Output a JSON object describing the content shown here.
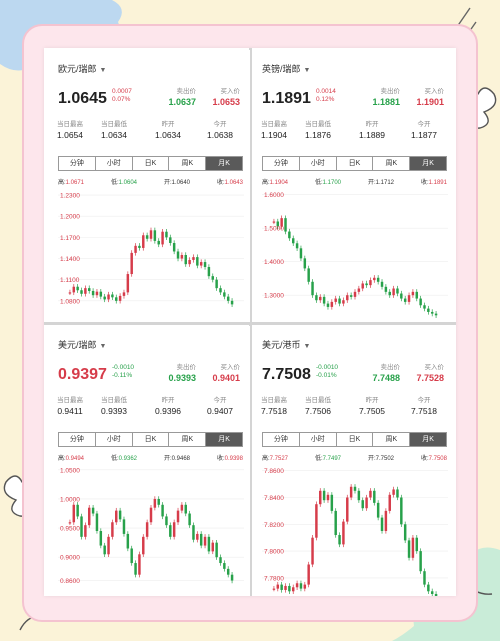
{
  "tabs": [
    "分钟",
    "小时",
    "日K",
    "周K",
    "月K"
  ],
  "labels": {
    "ask": "卖出价",
    "bid": "买入价",
    "high": "当日最高",
    "low": "当日最低",
    "prev_close": "昨开",
    "open": "今开",
    "ohlc_high": "高:",
    "ohlc_low": "低:",
    "ohlc_open": "开:",
    "ohlc_close": "收:"
  },
  "panels": [
    {
      "pair": "欧元/瑞郎",
      "price": "1.0645",
      "price_color": "#222222",
      "change": "0.0007",
      "change_pct": "0.07%",
      "change_color": "#d63c4a",
      "ask": "1.0637",
      "bid": "1.0653",
      "stats": {
        "high": "1.0654",
        "low": "1.0634",
        "prev_close": "1.0634",
        "open": "1.0638"
      },
      "ohlc": {
        "high": "1.0671",
        "low": "1.0604",
        "open": "1.0640",
        "close": "1.0643"
      },
      "chart_data": {
        "type": "candlestick",
        "ylim": [
          1.05,
          1.24
        ],
        "yticks": [
          1.23,
          1.2,
          1.17,
          1.14,
          1.11,
          1.08
        ],
        "ytick_labels": [
          "1.2300",
          "1.2000",
          "1.1700",
          "1.1400",
          "1.1100",
          "1.0800"
        ],
        "values": [
          1.092,
          1.1,
          1.095,
          1.09,
          1.098,
          1.094,
          1.088,
          1.093,
          1.086,
          1.082,
          1.089,
          1.085,
          1.08,
          1.087,
          1.092,
          1.118,
          1.148,
          1.158,
          1.155,
          1.173,
          1.168,
          1.18,
          1.165,
          1.16,
          1.178,
          1.17,
          1.162,
          1.15,
          1.14,
          1.145,
          1.132,
          1.138,
          1.142,
          1.13,
          1.135,
          1.128,
          1.115,
          1.11,
          1.098,
          1.092,
          1.086,
          1.08,
          1.075
        ]
      }
    },
    {
      "pair": "英镑/瑞郎",
      "price": "1.1891",
      "price_color": "#222222",
      "change": "0.0014",
      "change_pct": "0.12%",
      "change_color": "#d63c4a",
      "ask": "1.1881",
      "bid": "1.1901",
      "stats": {
        "high": "1.1904",
        "low": "1.1876",
        "prev_close": "1.1889",
        "open": "1.1877"
      },
      "ohlc": {
        "high": "1.1904",
        "low": "1.1700",
        "open": "1.1712",
        "close": "1.1891"
      },
      "chart_data": {
        "type": "candlestick",
        "ylim": [
          1.22,
          1.62
        ],
        "yticks": [
          1.6,
          1.5,
          1.4,
          1.3
        ],
        "ytick_labels": [
          "1.6000",
          "1.5000",
          "1.4000",
          "1.3000"
        ],
        "values": [
          1.52,
          1.505,
          1.53,
          1.49,
          1.47,
          1.455,
          1.44,
          1.41,
          1.38,
          1.34,
          1.3,
          1.285,
          1.295,
          1.275,
          1.265,
          1.28,
          1.29,
          1.275,
          1.285,
          1.3,
          1.295,
          1.31,
          1.32,
          1.335,
          1.33,
          1.345,
          1.352,
          1.34,
          1.325,
          1.31,
          1.3,
          1.32,
          1.305,
          1.29,
          1.28,
          1.3,
          1.31,
          1.29,
          1.27,
          1.26,
          1.25,
          1.245,
          1.24
        ]
      }
    },
    {
      "pair": "美元/瑞郎",
      "price": "0.9397",
      "price_color": "#d63c4a",
      "change": "-0.0010",
      "change_pct": "-0.11%",
      "change_color": "#27a14a",
      "ask": "0.9393",
      "bid": "0.9401",
      "stats": {
        "high": "0.9411",
        "low": "0.9393",
        "prev_close": "0.9396",
        "open": "0.9407"
      },
      "ohlc": {
        "high": "0.9494",
        "low": "0.9362",
        "open": "0.9468",
        "close": "0.9398"
      },
      "chart_data": {
        "type": "candlestick",
        "ylim": [
          0.83,
          1.06
        ],
        "yticks": [
          1.05,
          1.0,
          0.95,
          0.9,
          0.86
        ],
        "ytick_labels": [
          "1.0500",
          "1.0000",
          "0.9500",
          "0.9000",
          "0.8600"
        ],
        "values": [
          0.96,
          0.99,
          0.97,
          0.935,
          0.955,
          0.985,
          0.975,
          0.945,
          0.92,
          0.905,
          0.935,
          0.96,
          0.98,
          0.965,
          0.94,
          0.915,
          0.89,
          0.87,
          0.905,
          0.935,
          0.96,
          0.985,
          1.0,
          0.99,
          0.97,
          0.955,
          0.935,
          0.96,
          0.98,
          0.99,
          0.975,
          0.955,
          0.93,
          0.94,
          0.92,
          0.935,
          0.91,
          0.925,
          0.9,
          0.89,
          0.88,
          0.87,
          0.86
        ]
      }
    },
    {
      "pair": "美元/港币",
      "price": "7.7508",
      "price_color": "#222222",
      "change": "-0.0010",
      "change_pct": "-0.01%",
      "change_color": "#27a14a",
      "ask": "7.7488",
      "bid": "7.7528",
      "stats": {
        "high": "7.7518",
        "low": "7.7506",
        "prev_close": "7.7505",
        "open": "7.7518"
      },
      "ohlc": {
        "high": "7.7527",
        "low": "7.7497",
        "open": "7.7502",
        "close": "7.7508"
      },
      "chart_data": {
        "type": "candlestick",
        "ylim": [
          7.765,
          7.865
        ],
        "yticks": [
          7.86,
          7.84,
          7.82,
          7.8,
          7.78
        ],
        "ytick_labels": [
          "7.8600",
          "7.8400",
          "7.8200",
          "7.8000",
          "7.7800"
        ],
        "values": [
          7.772,
          7.775,
          7.771,
          7.774,
          7.77,
          7.773,
          7.776,
          7.772,
          7.775,
          7.79,
          7.81,
          7.835,
          7.845,
          7.838,
          7.842,
          7.83,
          7.812,
          7.805,
          7.822,
          7.84,
          7.848,
          7.845,
          7.838,
          7.832,
          7.84,
          7.845,
          7.836,
          7.825,
          7.815,
          7.83,
          7.842,
          7.846,
          7.84,
          7.82,
          7.808,
          7.795,
          7.81,
          7.8,
          7.785,
          7.775,
          7.77,
          7.768,
          7.766
        ]
      }
    }
  ]
}
